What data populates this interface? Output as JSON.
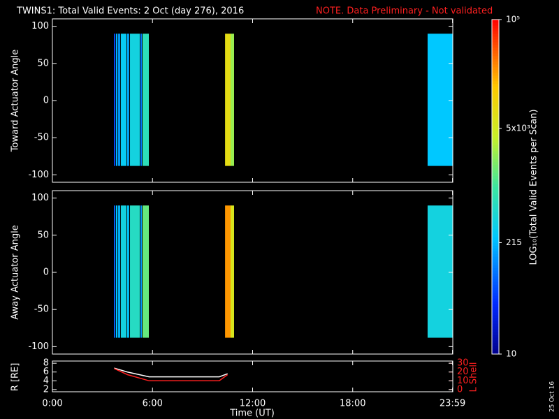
{
  "chart_data": [
    {
      "type": "heatmap",
      "title": "TWINS1: Total Valid Events:  2 Oct (day 276), 2016",
      "note": "NOTE. Data Preliminary - Not validated",
      "ylabel": "Toward Actuator Angle",
      "xlim": [
        0,
        24
      ],
      "ylim": [
        -110,
        110
      ],
      "yticks": [
        -100,
        -50,
        0,
        50,
        100
      ],
      "xticks": [
        {
          "value": 0,
          "label": "0:00"
        },
        {
          "value": 6,
          "label": "6:00"
        },
        {
          "value": 12,
          "label": "12:00"
        },
        {
          "value": 18,
          "label": "18:00"
        },
        {
          "value": 23.983,
          "label": "23:59"
        }
      ],
      "angles": [
        -88,
        90
      ],
      "stripes": [
        {
          "start": 3.69,
          "end": 3.77,
          "value": 60
        },
        {
          "start": 3.81,
          "end": 3.9,
          "value": 200
        },
        {
          "start": 3.94,
          "end": 4.06,
          "value": 150
        },
        {
          "start": 4.1,
          "end": 4.44,
          "value": 300
        },
        {
          "start": 4.48,
          "end": 4.6,
          "value": 180
        },
        {
          "start": 4.65,
          "end": 5.24,
          "value": 400
        },
        {
          "start": 5.28,
          "end": 5.36,
          "value": 100
        },
        {
          "start": 5.4,
          "end": 5.78,
          "value": 700
        },
        {
          "start": 10.35,
          "end": 10.68,
          "value": 8000
        },
        {
          "start": 10.68,
          "end": 10.89,
          "value": 2500
        },
        {
          "start": 22.49,
          "end": 24,
          "value": 250
        }
      ],
      "colorbar": {
        "label": "LOG₁₀(Total Valid  Events per Scan)",
        "zlim": [
          10,
          100000
        ],
        "log": true,
        "zticks": [
          10,
          215,
          {
            "value": 5000,
            "label": "5x10³"
          },
          {
            "value": 100000,
            "label": "10⁵"
          }
        ]
      }
    },
    {
      "type": "heatmap",
      "ylabel": "Away Actuator Angle",
      "xlim": [
        0,
        24
      ],
      "ylim": [
        -110,
        110
      ],
      "yticks": [
        -100,
        -50,
        0,
        50,
        100
      ],
      "angles": [
        -88,
        90
      ],
      "stripes": [
        {
          "start": 3.69,
          "end": 3.77,
          "value": 80
        },
        {
          "start": 3.81,
          "end": 3.9,
          "value": 250
        },
        {
          "start": 3.94,
          "end": 4.06,
          "value": 200
        },
        {
          "start": 4.1,
          "end": 4.44,
          "value": 400
        },
        {
          "start": 4.48,
          "end": 4.6,
          "value": 250
        },
        {
          "start": 4.65,
          "end": 5.24,
          "value": 600
        },
        {
          "start": 5.28,
          "end": 5.36,
          "value": 150
        },
        {
          "start": 5.4,
          "end": 5.78,
          "value": 1500
        },
        {
          "start": 10.35,
          "end": 10.68,
          "value": 25000
        },
        {
          "start": 10.68,
          "end": 10.89,
          "value": 6000
        },
        {
          "start": 22.49,
          "end": 24,
          "value": 400
        }
      ]
    },
    {
      "type": "line",
      "ylabel": "R [RE]",
      "y2label": "L Shell",
      "xlabel": "Time (UT)",
      "xlim": [
        0,
        24
      ],
      "ylim": [
        1.5,
        8.5
      ],
      "yticks": [
        2,
        4,
        6,
        8
      ],
      "y2lim": [
        -2.5,
        32.5
      ],
      "y2ticks": [
        0,
        10,
        20,
        30
      ],
      "x": [
        3.7,
        4.5,
        5.8,
        10.0,
        10.5
      ],
      "series": [
        {
          "name": "R",
          "color": "#ffffff",
          "values": [
            6.9,
            6.0,
            4.9,
            4.9,
            5.6
          ]
        },
        {
          "name": "L Shell",
          "color": "#ff2020",
          "axis": "y2",
          "values": [
            24,
            17,
            10,
            10,
            17
          ]
        }
      ]
    }
  ],
  "stamp": "25 Oct 16"
}
